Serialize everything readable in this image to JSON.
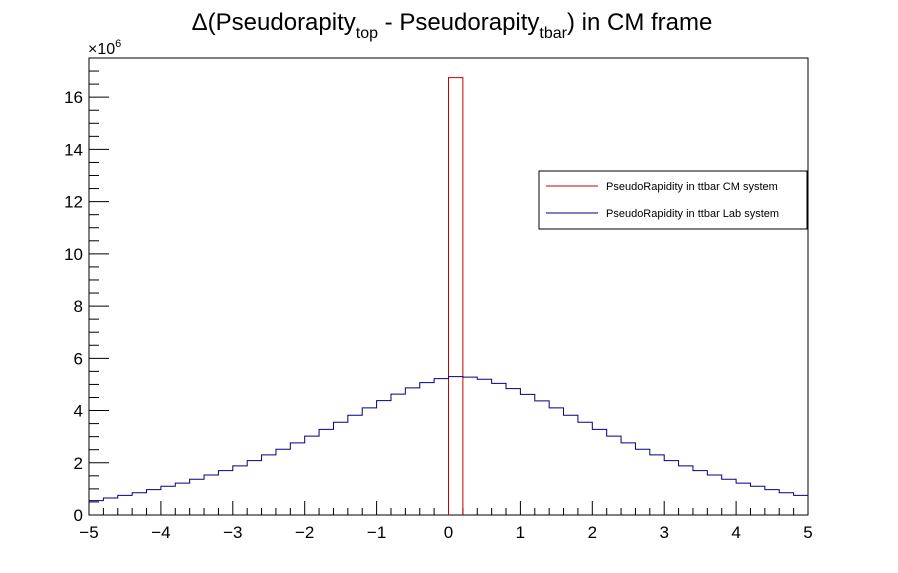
{
  "chart_data": {
    "type": "histogram",
    "title_main": "Δ(Pseudorapity",
    "title_sub1": "top",
    "title_mid": " - Pseudorapity",
    "title_sub2": "tbar",
    "title_end": ") in CM frame",
    "y_multiplier_base": "×10",
    "y_multiplier_exp": "6",
    "xlim": [
      -5,
      5
    ],
    "ylim": [
      0,
      17.5
    ],
    "x_ticks": [
      -5,
      -4,
      -3,
      -2,
      -1,
      0,
      1,
      2,
      3,
      4,
      5
    ],
    "x_tick_labels": [
      "−5",
      "−4",
      "−3",
      "−2",
      "−1",
      "0",
      "1",
      "2",
      "3",
      "4",
      "5"
    ],
    "y_ticks": [
      0,
      2,
      4,
      6,
      8,
      10,
      12,
      14,
      16
    ],
    "y_tick_labels": [
      "0",
      "2",
      "4",
      "6",
      "8",
      "10",
      "12",
      "14",
      "16"
    ],
    "legend_position": "top-right",
    "bin_edges_range": [
      -5,
      5
    ],
    "bin_width": 0.2,
    "series": [
      {
        "name": "PseudoRapidity in ttbar CM system",
        "color": "#cc0000",
        "values": [
          0,
          0,
          0,
          0,
          0,
          0,
          0,
          0,
          0,
          0,
          0,
          0,
          0,
          0,
          0,
          0,
          0,
          0,
          0,
          0,
          0,
          0,
          0,
          0,
          0,
          16.75,
          0,
          0,
          0,
          0,
          0,
          0,
          0,
          0,
          0,
          0,
          0,
          0,
          0,
          0,
          0,
          0,
          0,
          0,
          0,
          0,
          0,
          0,
          0,
          0
        ]
      },
      {
        "name": "PseudoRapidity in ttbar Lab system",
        "color": "#000080",
        "values": [
          0.55,
          0.65,
          0.75,
          0.85,
          0.97,
          1.1,
          1.22,
          1.37,
          1.53,
          1.7,
          1.88,
          2.08,
          2.3,
          2.52,
          2.76,
          3.02,
          3.28,
          3.55,
          3.82,
          4.1,
          4.38,
          4.63,
          4.87,
          5.07,
          5.22,
          5.3,
          5.28,
          5.2,
          5.04,
          4.84,
          4.62,
          4.37,
          4.1,
          3.82,
          3.55,
          3.28,
          3.02,
          2.76,
          2.52,
          2.3,
          2.08,
          1.88,
          1.7,
          1.53,
          1.37,
          1.22,
          1.1,
          0.97,
          0.85,
          0.75
        ]
      }
    ]
  }
}
